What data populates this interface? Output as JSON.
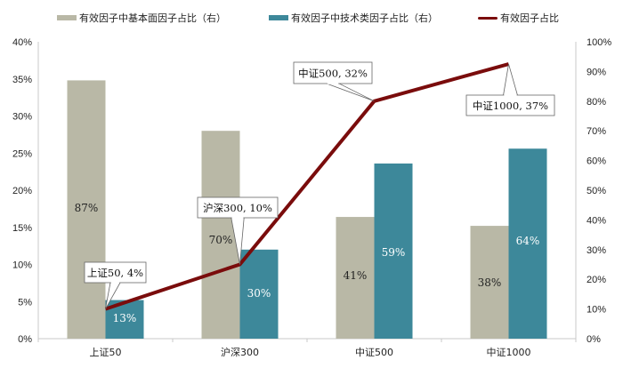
{
  "chart_data": {
    "type": "bar+line",
    "title": "",
    "categories": [
      "上证50",
      "沪深300",
      "中证500",
      "中证1000"
    ],
    "series": [
      {
        "name": "有效因子中基本面因子占比（右）",
        "type": "bar",
        "axis": "right",
        "color": "#b9b8a6",
        "values": [
          87,
          70,
          41,
          38
        ],
        "labels": [
          "87%",
          "70%",
          "41%",
          "38%"
        ],
        "label_color": "#222222"
      },
      {
        "name": "有效因子中技术类因子占比（右）",
        "type": "bar",
        "axis": "right",
        "color": "#3d889a",
        "values": [
          13,
          30,
          59,
          64
        ],
        "labels": [
          "13%",
          "30%",
          "59%",
          "64%"
        ],
        "label_color": "#ffffff"
      },
      {
        "name": "有效因子占比",
        "type": "line",
        "axis": "left",
        "color": "#7a0c0c",
        "values": [
          4,
          10,
          32,
          37
        ],
        "callouts": [
          "上证50, 4%",
          "沪深300, 10%",
          "中证500, 32%",
          "中证1000, 37%"
        ]
      }
    ],
    "left_axis": {
      "ylim": [
        0,
        40
      ],
      "ticks": [
        "0%",
        "5%",
        "10%",
        "15%",
        "20%",
        "25%",
        "30%",
        "35%",
        "40%"
      ]
    },
    "right_axis": {
      "ylim": [
        0,
        100
      ],
      "ticks": [
        "0%",
        "10%",
        "20%",
        "30%",
        "40%",
        "50%",
        "60%",
        "70%",
        "80%",
        "90%",
        "100%"
      ]
    },
    "xlabel": "",
    "ylabel": "",
    "grid": false,
    "legend_position": "top"
  },
  "legend": [
    {
      "label": "有效因子中基本面因子占比（右）",
      "color": "#b9b8a6",
      "kind": "bar"
    },
    {
      "label": "有效因子中技术类因子占比（右）",
      "color": "#3d889a",
      "kind": "bar"
    },
    {
      "label": "有效因子占比",
      "color": "#7a0c0c",
      "kind": "line"
    }
  ]
}
